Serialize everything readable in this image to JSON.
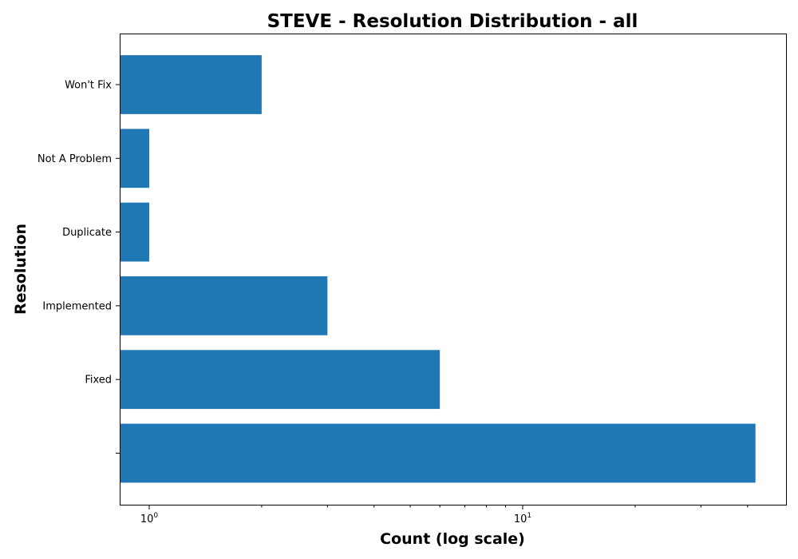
{
  "chart_data": {
    "type": "bar",
    "orientation": "horizontal",
    "title": "STEVE - Resolution Distribution - all",
    "xlabel": "Count (log scale)",
    "ylabel": "Resolution",
    "x_scale": "log",
    "xlim": [
      0.85,
      48
    ],
    "major_ticks": [
      {
        "value": 1,
        "base": "10",
        "exponent": "0"
      },
      {
        "value": 10,
        "base": "10",
        "exponent": "1"
      }
    ],
    "minor_ticks": [
      2,
      3,
      4,
      5,
      6,
      7,
      8,
      9,
      20,
      30,
      40
    ],
    "categories": [
      "",
      "Fixed",
      "Implemented",
      "Duplicate",
      "Not A Problem",
      "Won't Fix"
    ],
    "values": [
      42,
      6,
      3,
      1,
      1,
      2
    ],
    "bar_color": "#1f77b4",
    "grid": false,
    "legend": "none"
  }
}
